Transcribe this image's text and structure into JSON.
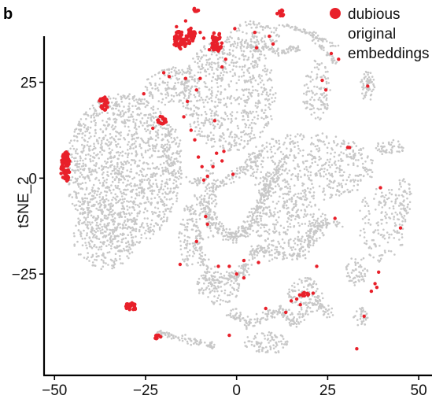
{
  "panel_label": "b",
  "chart_data": {
    "type": "scatter",
    "title": "",
    "xlabel": "",
    "ylabel": "tSNE_2",
    "xlim": [
      -52,
      53
    ],
    "ylim": [
      -50,
      44
    ],
    "x_ticks": [
      -50,
      -25,
      0,
      25,
      50
    ],
    "y_ticks": [
      -25,
      0,
      25
    ],
    "x_tick_labels": [
      "−50",
      "−25",
      "0",
      "25",
      "50"
    ],
    "y_tick_labels": [
      "−25",
      "0",
      "25"
    ],
    "grid": false,
    "legend_position": "top-right",
    "colors": {
      "background_points": "#c8c8c8",
      "highlight": "#e8202a"
    },
    "legend": [
      {
        "label_lines": [
          "dubious",
          "original",
          "embeddings"
        ],
        "color": "#e8202a"
      }
    ],
    "series": [
      {
        "name": "",
        "color": "#c8c8c8",
        "regions": [
          {
            "kind": "ellipse",
            "cx": -31,
            "cy": 2,
            "rx": 16,
            "ry": 20,
            "n": 1400
          },
          {
            "kind": "ellipse",
            "cx": -36,
            "cy": -15,
            "rx": 9,
            "ry": 9,
            "n": 250
          },
          {
            "kind": "ellipse",
            "cx": -2,
            "cy": 22,
            "rx": 13,
            "ry": 15,
            "n": 700
          },
          {
            "kind": "ellipse",
            "cx": -18,
            "cy": 24,
            "rx": 7,
            "ry": 5,
            "n": 140
          },
          {
            "kind": "ellipse",
            "cx": 20,
            "cy": 3,
            "rx": 18,
            "ry": 9,
            "n": 500
          },
          {
            "kind": "ellipse",
            "cx": 15,
            "cy": -12,
            "rx": 10,
            "ry": 7,
            "n": 250
          },
          {
            "kind": "ellipse",
            "cx": 40,
            "cy": -12,
            "rx": 7,
            "ry": 10,
            "n": 160
          },
          {
            "kind": "ellipse",
            "cx": 22,
            "cy": 23,
            "rx": 4,
            "ry": 8,
            "n": 110
          },
          {
            "kind": "ellipse",
            "cx": 36,
            "cy": 24,
            "rx": 2,
            "ry": 4,
            "n": 60
          },
          {
            "kind": "ellipse",
            "cx": 5,
            "cy": 37,
            "rx": 7,
            "ry": 4,
            "n": 110
          },
          {
            "kind": "ellipse",
            "cx": -5,
            "cy": -28,
            "rx": 6,
            "ry": 5,
            "n": 110
          },
          {
            "kind": "ellipse",
            "cx": 8,
            "cy": -43,
            "rx": 6,
            "ry": 3,
            "n": 90
          },
          {
            "kind": "ellipse",
            "cx": 19,
            "cy": -30,
            "rx": 5,
            "ry": 4,
            "n": 90
          },
          {
            "kind": "ellipse",
            "cx": 42,
            "cy": 8,
            "rx": 4,
            "ry": 2,
            "n": 50
          },
          {
            "kind": "ellipse",
            "cx": 46,
            "cy": -5,
            "rx": 2,
            "ry": 6,
            "n": 45
          },
          {
            "kind": "ellipse",
            "cx": 34,
            "cy": -36,
            "rx": 2,
            "ry": 3,
            "n": 35
          },
          {
            "kind": "ellipse",
            "cx": 33,
            "cy": -24,
            "rx": 3,
            "ry": 4,
            "n": 60
          },
          {
            "kind": "ellipse",
            "cx": -13,
            "cy": -15,
            "rx": 3,
            "ry": 8,
            "n": 80
          },
          {
            "kind": "ellipse",
            "cx": -7,
            "cy": -6,
            "rx": 2,
            "ry": 11,
            "n": 60
          },
          {
            "kind": "ellipse",
            "cx": -18,
            "cy": 5,
            "rx": 3,
            "ry": 9,
            "n": 70
          },
          {
            "kind": "path",
            "pts": [
              [
                -10,
                -5
              ],
              [
                -6,
                -12
              ],
              [
                0,
                -16
              ],
              [
                5,
                -10
              ],
              [
                8,
                -3
              ],
              [
                12,
                3
              ]
            ],
            "width": 3,
            "n": 350
          },
          {
            "kind": "path",
            "pts": [
              [
                -12,
                -5
              ],
              [
                -10,
                -20
              ],
              [
                -6,
                -28
              ],
              [
                2,
                -24
              ],
              [
                6,
                -18
              ],
              [
                10,
                -20
              ],
              [
                18,
                -20
              ],
              [
                22,
                -12
              ],
              [
                28,
                -12
              ]
            ],
            "width": 2.5,
            "n": 350
          },
          {
            "kind": "path",
            "pts": [
              [
                -2,
                -35
              ],
              [
                4,
                -38
              ],
              [
                12,
                -34
              ],
              [
                16,
                -38
              ],
              [
                22,
                -32
              ],
              [
                26,
                -36
              ]
            ],
            "width": 2.5,
            "n": 220
          },
          {
            "kind": "path",
            "pts": [
              [
                -22,
                -40
              ],
              [
                -14,
                -42
              ],
              [
                -6,
                -44
              ]
            ],
            "width": 1.5,
            "n": 90
          },
          {
            "kind": "path",
            "pts": [
              [
                12,
                40
              ],
              [
                20,
                38
              ],
              [
                28,
                34
              ]
            ],
            "width": 1,
            "n": 60
          },
          {
            "kind": "path",
            "pts": [
              [
                -13,
                0
              ],
              [
                -6,
                -2
              ],
              [
                2,
                2
              ],
              [
                6,
                6
              ]
            ],
            "width": 2.5,
            "n": 120
          },
          {
            "kind": "path",
            "pts": [
              [
                20,
                38
              ],
              [
                27,
                30
              ]
            ],
            "width": 1.2,
            "n": 40
          },
          {
            "kind": "path",
            "pts": [
              [
                4,
                34
              ],
              [
                12,
                33
              ],
              [
                17,
                34
              ]
            ],
            "width": 1.5,
            "n": 70
          }
        ]
      },
      {
        "name": "dubious original embeddings",
        "color": "#e8202a",
        "clusters": [
          {
            "x": -47,
            "y": 3,
            "rx": 1.3,
            "ry": 4.2,
            "n": 75
          },
          {
            "x": -36.5,
            "y": 19.5,
            "rx": 1.3,
            "ry": 1.8,
            "n": 30
          },
          {
            "x": -29,
            "y": -33.5,
            "rx": 1.6,
            "ry": 1.0,
            "n": 25
          },
          {
            "x": -15.5,
            "y": 36,
            "rx": 2.0,
            "ry": 2.3,
            "n": 50
          },
          {
            "x": -12.5,
            "y": 37,
            "rx": 1.2,
            "ry": 2.4,
            "n": 25
          },
          {
            "x": -5.5,
            "y": 35.5,
            "rx": 1.6,
            "ry": 2.6,
            "n": 40
          },
          {
            "x": -20.5,
            "y": 15,
            "rx": 1.2,
            "ry": 1.2,
            "n": 18
          },
          {
            "x": 12,
            "y": 43,
            "rx": 1.0,
            "ry": 1.0,
            "n": 12
          },
          {
            "x": -21.5,
            "y": -41.5,
            "rx": 0.9,
            "ry": 0.6,
            "n": 8
          },
          {
            "x": -11,
            "y": 44,
            "rx": 0.7,
            "ry": 0.7,
            "n": 8
          },
          {
            "x": 18.5,
            "y": -30.2,
            "rx": 1.4,
            "ry": 0.6,
            "n": 10
          }
        ],
        "points": [
          [
            -25.5,
            22.0
          ],
          [
            -20,
            27.5
          ],
          [
            -18.5,
            26.5
          ],
          [
            -14,
            41
          ],
          [
            -16.5,
            39.5
          ],
          [
            -14,
            26
          ],
          [
            -11,
            23
          ],
          [
            -10,
            26
          ],
          [
            -13.5,
            20
          ],
          [
            -14.5,
            16
          ],
          [
            -12.5,
            12.5
          ],
          [
            -11.5,
            10
          ],
          [
            -6,
            15
          ],
          [
            -9.5,
            3
          ],
          [
            -8,
            0.5
          ],
          [
            -9,
            -0.5
          ],
          [
            -10.5,
            5.5
          ],
          [
            -5.5,
            6.5
          ],
          [
            -6.5,
            3
          ],
          [
            -3.5,
            7
          ],
          [
            -4,
            4.5
          ],
          [
            -1,
            1
          ],
          [
            -8.5,
            -10
          ],
          [
            -8,
            -12
          ],
          [
            -11,
            -16.5
          ],
          [
            -15.5,
            -22.5
          ],
          [
            -5,
            -23
          ],
          [
            -2,
            -41
          ],
          [
            2,
            -21.5
          ],
          [
            0,
            -25
          ],
          [
            6,
            -22
          ],
          [
            8,
            -34
          ],
          [
            15,
            -32
          ],
          [
            16.5,
            -31.5
          ],
          [
            21,
            -30
          ],
          [
            17.5,
            -33
          ],
          [
            13.5,
            -35
          ],
          [
            22,
            -23
          ],
          [
            27,
            -10.5
          ],
          [
            26,
            32.5
          ],
          [
            28,
            31
          ],
          [
            36,
            24
          ],
          [
            39.5,
            -2.5
          ],
          [
            35,
            -36
          ],
          [
            37,
            -29.5
          ],
          [
            38,
            -27.5
          ],
          [
            39,
            -24.5
          ],
          [
            38.5,
            -28.5
          ],
          [
            45,
            -13
          ],
          [
            24.5,
            23
          ],
          [
            23.5,
            25.5
          ],
          [
            30.5,
            8
          ],
          [
            33,
            -44.5
          ],
          [
            -3,
            31
          ],
          [
            -4,
            29
          ],
          [
            -7.5,
            33.5
          ],
          [
            5,
            38
          ],
          [
            5.5,
            34
          ],
          [
            9,
            37
          ],
          [
            10,
            35
          ],
          [
            -0.5,
            39
          ],
          [
            -10,
            38
          ],
          [
            -9,
            36.5
          ],
          [
            -23,
            13
          ],
          [
            31,
            8
          ],
          [
            -2,
            -23
          ],
          [
            2,
            -26
          ]
        ]
      }
    ]
  }
}
